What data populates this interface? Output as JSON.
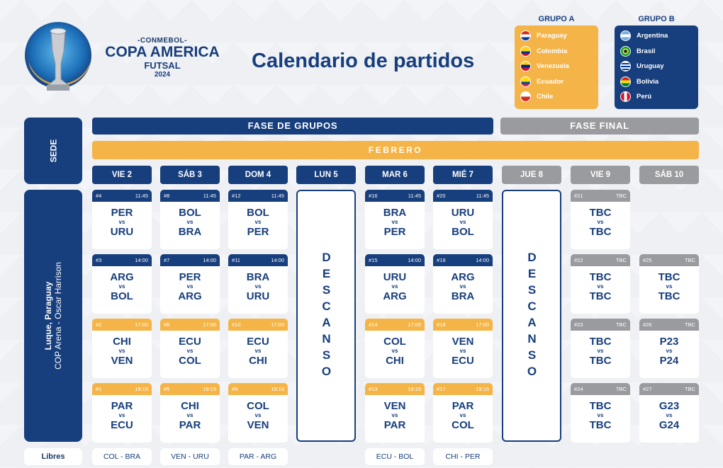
{
  "brand": {
    "conmebol": "-CONMEBOL-",
    "copa": "COPA AMERICA",
    "futsal": "FUTSAL",
    "year": "2024"
  },
  "title": "Calendario de partidos",
  "groups": {
    "a": {
      "title": "GRUPO A",
      "teams": [
        "Paraguay",
        "Colombia",
        "Venezuela",
        "Ecuador",
        "Chile"
      ]
    },
    "b": {
      "title": "GRUPO B",
      "teams": [
        "Argentina",
        "Brasil",
        "Uruguay",
        "Bolivia",
        "Perú"
      ]
    }
  },
  "sede": "SEDE",
  "venue": {
    "line1": "Luque, Paraguay",
    "line2": "COP Arena - Oscar Harrison"
  },
  "libres": "Libres",
  "phases": {
    "groups": "FASE DE GRUPOS",
    "final": "FASE FINAL"
  },
  "month": "FEBRERO",
  "days": [
    "VIE 2",
    "SÁB 3",
    "DOM 4",
    "LUN 5",
    "MAR 6",
    "MIÉ 7",
    "JUE 8",
    "VIE 9",
    "SÁB 10"
  ],
  "rest": "DESCANSO",
  "vs": "vs",
  "colors": {
    "navy": "#173e7d",
    "orange": "#f5b447",
    "grey": "#9a9b9e"
  },
  "matches": [
    {
      "n": "#4",
      "time": "11:45",
      "home": "PER",
      "away": "URU"
    },
    {
      "n": "#3",
      "time": "14:00",
      "home": "ARG",
      "away": "BOL"
    },
    {
      "n": "#2",
      "time": "17:00",
      "home": "CHI",
      "away": "VEN"
    },
    {
      "n": "#1",
      "time": "19:15",
      "home": "PAR",
      "away": "ECU"
    },
    {
      "n": "#8",
      "time": "11:45",
      "home": "BOL",
      "away": "BRA"
    },
    {
      "n": "#7",
      "time": "14:00",
      "home": "PER",
      "away": "ARG"
    },
    {
      "n": "#6",
      "time": "17:00",
      "home": "ECU",
      "away": "COL"
    },
    {
      "n": "#5",
      "time": "19:15",
      "home": "CHI",
      "away": "PAR"
    },
    {
      "n": "#12",
      "time": "11:45",
      "home": "BOL",
      "away": "PER"
    },
    {
      "n": "#11",
      "time": "14:00",
      "home": "BRA",
      "away": "URU"
    },
    {
      "n": "#10",
      "time": "17:00",
      "home": "ECU",
      "away": "CHI"
    },
    {
      "n": "#9",
      "time": "19:15",
      "home": "COL",
      "away": "VEN"
    },
    {
      "n": "#16",
      "time": "11:45",
      "home": "BRA",
      "away": "PER"
    },
    {
      "n": "#15",
      "time": "14:00",
      "home": "URU",
      "away": "ARG"
    },
    {
      "n": "#14",
      "time": "17:00",
      "home": "COL",
      "away": "CHI"
    },
    {
      "n": "#13",
      "time": "19:15",
      "home": "VEN",
      "away": "PAR"
    },
    {
      "n": "#20",
      "time": "11:45",
      "home": "URU",
      "away": "BOL"
    },
    {
      "n": "#19",
      "time": "14:00",
      "home": "ARG",
      "away": "BRA"
    },
    {
      "n": "#18",
      "time": "17:00",
      "home": "VEN",
      "away": "ECU"
    },
    {
      "n": "#17",
      "time": "19:15",
      "home": "PAR",
      "away": "COL"
    },
    {
      "n": "#21",
      "time": "TBC",
      "home": "TBC",
      "away": "TBC"
    },
    {
      "n": "#22",
      "time": "TBC",
      "home": "TBC",
      "away": "TBC"
    },
    {
      "n": "#23",
      "time": "TBC",
      "home": "TBC",
      "away": "TBC"
    },
    {
      "n": "#24",
      "time": "TBC",
      "home": "TBC",
      "away": "TBC"
    },
    {
      "n": "#25",
      "time": "TBC",
      "home": "TBC",
      "away": "TBC"
    },
    {
      "n": "#26",
      "time": "TBC",
      "home": "P23",
      "away": "P24"
    },
    {
      "n": "#27",
      "time": "TBC",
      "home": "G23",
      "away": "G24"
    }
  ],
  "free": [
    "COL - BRA",
    "VEN - URU",
    "PAR - ARG",
    "ECU - BOL",
    "CHI - PER"
  ]
}
